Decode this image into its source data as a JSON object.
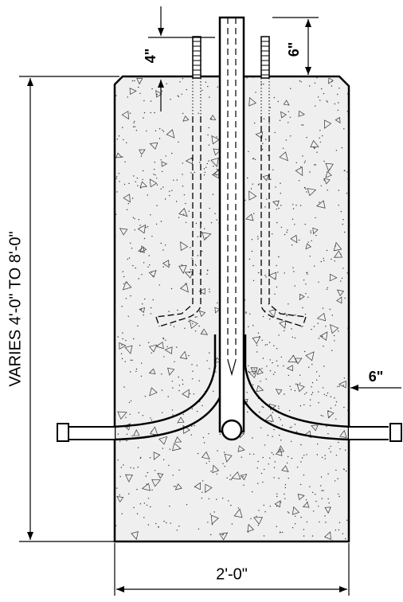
{
  "dimensions": {
    "top_clearance": "4\"",
    "bolt_projection": "6\"",
    "height_range": "VARIES 4'-0\" TO 8'-0\"",
    "side_offset": "6\"",
    "width": "2'-0\""
  },
  "colors": {
    "line": "#000000",
    "concrete": "#efefef",
    "background": "#ffffff"
  }
}
